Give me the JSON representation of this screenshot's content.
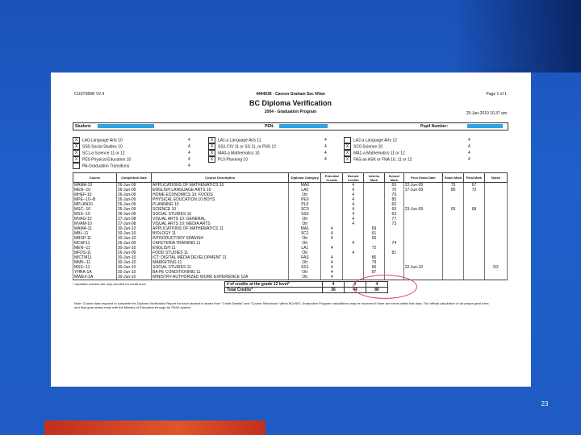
{
  "slide": {
    "page_number": "23"
  },
  "report": {
    "code": "CUST089R V2.4",
    "school_line": "4444036 - Carson Graham Sec NVan",
    "page": "Page 1 of 1",
    "title": "BC Diploma Verification",
    "subtitle": "2004 - Graduation Program",
    "date": "25-Jan-2010 10.37 am",
    "student_label": "Student:",
    "pen_label": "PEN:",
    "pupil_label": "Pupil Number:"
  },
  "requirements": [
    {
      "check": "X",
      "label": "LA0-Language Arts 10",
      "value": "4"
    },
    {
      "check": "X",
      "label": "SS0-Social Studies 10",
      "value": "4"
    },
    {
      "check": "X",
      "label": "SC1-a Science 11 or 12",
      "value": "4"
    },
    {
      "check": "X",
      "label": "PE0-Physical Education 10",
      "value": "4"
    },
    {
      "check": "",
      "label": "PA-Graduation Transitions",
      "value": "4"
    },
    {
      "check": "X",
      "label": "LA1-a Language Arts 11",
      "value": "4"
    },
    {
      "check": "X",
      "label": "SS1-CIV 11 or SS 11, or FNS 12",
      "value": "4"
    },
    {
      "check": "X",
      "label": "MA0-a Mathematics 10",
      "value": "4"
    },
    {
      "check": "X",
      "label": "PL0-Planning 10",
      "value": "4"
    },
    {
      "check": "",
      "label": "LA2-a Language Arts 12",
      "value": "4"
    },
    {
      "check": "X",
      "label": "SC0-Science 10",
      "value": "4"
    },
    {
      "check": "X",
      "label": "MA1-a Mathematics 11 or 12",
      "value": "4"
    },
    {
      "check": "X",
      "label": "FAS-an ASK or FNA 10, 11 or 12",
      "value": "4"
    }
  ],
  "table": {
    "headers": [
      "Course",
      "Completion Date",
      "Course Description",
      "Diploma Category",
      "Potential Credits",
      "Earned Credits",
      "Interim Mark",
      "School Mark",
      "Prov Exam Date",
      "Exam Mark",
      "Final Mark",
      "Notes"
    ],
    "rows": [
      [
        "MAMA-10",
        "26-Jun-09",
        "APPLICATIONS OF MATHEMATICS 10",
        "MA0",
        "",
        "4",
        "",
        "65",
        "22-Jun-09",
        "75",
        "67",
        ""
      ],
      [
        "MEN--10",
        "26-Jun-09",
        "ENGLISH LANGUAGE ARTS 10",
        "LA0",
        "",
        "4",
        "",
        "70",
        "17-Jun-09",
        "80",
        "72",
        ""
      ],
      [
        "MHEF-10",
        "26-Jun-09",
        "HOME ECONOMICS 10: FOODS",
        "Otr",
        "",
        "4",
        "",
        "79",
        "",
        "",
        "",
        ""
      ],
      [
        "MPE--10--B",
        "26-Jun-09",
        "PHYSICAL EDUCATION 10 BOYS",
        "PE0",
        "",
        "4",
        "",
        "85",
        "",
        "",
        "",
        ""
      ],
      [
        "MPLAN10",
        "26-Jun-09",
        "PLANNING 10",
        "PL0",
        "",
        "4",
        "",
        "60",
        "",
        "",
        "",
        ""
      ],
      [
        "MSC--10",
        "26-Jun-09",
        "SCIENCE 10",
        "SC0",
        "",
        "4",
        "",
        "69",
        "23-Jun-09",
        "65",
        "68",
        ""
      ],
      [
        "MSS--10",
        "26-Jun-09",
        "SOCIAL STUDIES 10",
        "SS0",
        "",
        "4",
        "",
        "63",
        "",
        "",
        "",
        ""
      ],
      [
        "MVAG-10",
        "27-Jun-08",
        "VISUAL ARTS 10: GENERAL",
        "Otr",
        "",
        "4",
        "",
        "77",
        "",
        "",
        "",
        ""
      ],
      [
        "MVAM-10",
        "27-Jun-08",
        "VISUAL ARTS 10: MEDIA ARTS",
        "Otr",
        "",
        "4",
        "",
        "73",
        "",
        "",
        "",
        ""
      ],
      [
        "MAMA-11",
        "30-Jun-10",
        "APPLICATIONS OF MATHEMATICS 11",
        "MA1",
        "4",
        "",
        "69",
        "",
        "",
        "",
        "",
        ""
      ],
      [
        "MBI--11",
        "30-Jun-10",
        "BIOLOGY 11",
        "SC1",
        "4",
        "",
        "61",
        "",
        "",
        "",
        "",
        ""
      ],
      [
        "MBSP-11",
        "30-Jun-10",
        "INTRODUCTORY SPANISH",
        "Otr",
        "4",
        "",
        "56",
        "",
        "",
        "",
        "",
        ""
      ],
      [
        "MCAF11",
        "26-Jun-09",
        "CAFETERIA TRAINING 11",
        "Otr",
        "",
        "4",
        "",
        "74",
        "",
        "",
        "",
        ""
      ],
      [
        "MEN--11",
        "30-Jun-10",
        "ENGLISH 11",
        "LA1",
        "4",
        "",
        "72",
        "",
        "",
        "",
        "",
        ""
      ],
      [
        "MFDS-11",
        "26-Jun-09",
        "FOOD STUDIES 11",
        "Otr",
        "",
        "4",
        "",
        "81",
        "",
        "",
        "",
        ""
      ],
      [
        "MICTM11",
        "30-Jun-10",
        "ICT: DIGITAL MEDIA DEVELOPMENT 11",
        "FAS",
        "4",
        "",
        "86",
        "",
        "",
        "",
        "",
        ""
      ],
      [
        "MMK--11",
        "30-Jun-10",
        "MARKETING 11",
        "Otr",
        "4",
        "",
        "79",
        "",
        "",
        "",
        "",
        ""
      ],
      [
        "MSS--11",
        "30-Jun-10",
        "SOCIAL STUDIES 11",
        "SS1",
        "4",
        "",
        "56",
        "",
        "22-Jun-10",
        "",
        "",
        "R3"
      ],
      [
        "YHRA-1A",
        "30-Jun-10",
        "BA PE CONDITIONING 11",
        "Otr",
        "4",
        "",
        "87",
        "",
        "",
        "",
        "",
        ""
      ],
      [
        "MWEX-2A",
        "30-Jun-10",
        "MINISTRY-AUTHORIZED WORK EXPERIENCE 12A",
        "Otr",
        "4",
        "",
        "",
        "",
        "",
        "",
        "",
        ""
      ]
    ]
  },
  "footnote": "* repeated courses are only counted for credit once",
  "totals": {
    "grade12_label": "# of credits at the grade 12 level*",
    "grade12": [
      "4",
      "0",
      "4"
    ],
    "total_label": "Total Credits*",
    "total": [
      "36",
      "44",
      "80"
    ]
  },
  "note": "Note: Course data required to complete the Diploma Verification Report for each student is drawn from \"Credit Details\" and \"Course Selections\" within BCeSIS. Graduation Program calculations may be incorrect if there are errors within this data. The official calculation of all unique grad rules and final grad status rests with the Ministry of Education through its TRAX system.",
  "colors": {
    "background": "#1f5fca",
    "accent_bar": "#d8482a",
    "redaction": "#2fa4e0",
    "circle": "#e0407a"
  }
}
